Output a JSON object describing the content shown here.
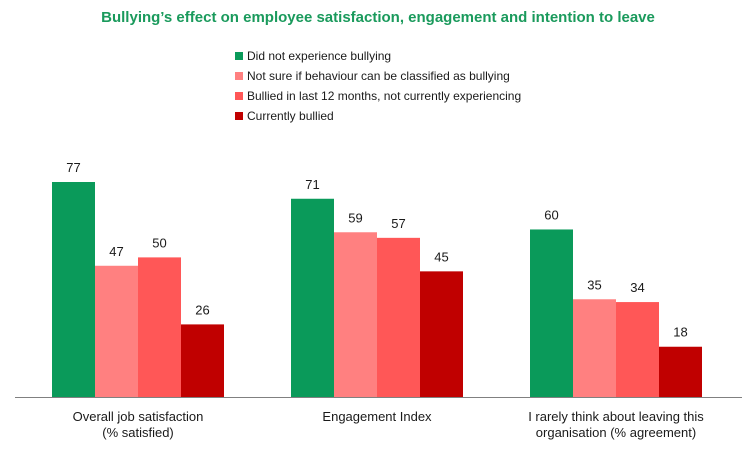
{
  "chart_data": {
    "type": "bar",
    "title": "Bullying’s effect on employee satisfaction, engagement and intention to leave",
    "categories": [
      [
        "Overall job satisfaction",
        "(% satisfied)"
      ],
      [
        "Engagement Index"
      ],
      [
        "I rarely think about leaving this",
        "organisation (% agreement)"
      ]
    ],
    "series": [
      {
        "name": "Did not experience bullying",
        "color": "#0a9a5a",
        "values": [
          77,
          71,
          60
        ]
      },
      {
        "name": "Not sure if behaviour can be classified as bullying",
        "color": "#ff8080",
        "values": [
          47,
          59,
          35
        ]
      },
      {
        "name": "Bullied in last 12 months, not currently experiencing",
        "color": "#ff5757",
        "values": [
          50,
          57,
          34
        ]
      },
      {
        "name": "Currently bullied",
        "color": "#c00000",
        "values": [
          26,
          45,
          18
        ]
      }
    ],
    "ylim": [
      0,
      77
    ],
    "xlabel": "",
    "ylabel": "",
    "legend_position": "top-center",
    "grid": false
  }
}
